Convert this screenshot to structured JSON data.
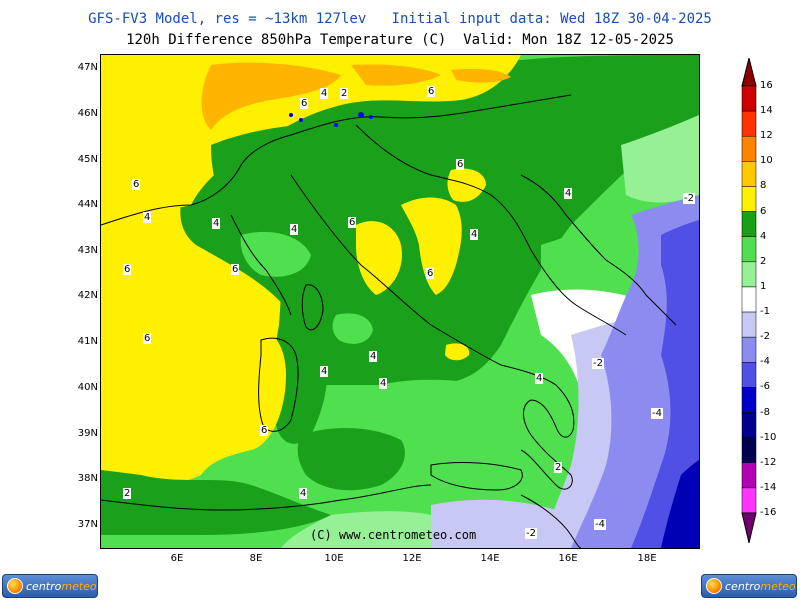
{
  "header": {
    "line1": "GFS-FV3 Model, res = ~13km 127lev   Initial input data: Wed 18Z 30-04-2025",
    "line2": "120h Difference 850hPa Temperature (C)  Valid: Mon 18Z 12-05-2025"
  },
  "map": {
    "copyright": "(C) www.centrometeo.com",
    "lat_labels": [
      "47N",
      "46N",
      "45N",
      "44N",
      "43N",
      "42N",
      "41N",
      "40N",
      "39N",
      "38N",
      "37N"
    ],
    "lon_labels": [
      "6E",
      "8E",
      "10E",
      "12E",
      "14E",
      "16E",
      "18E"
    ],
    "contour_labels": [
      "6",
      "6",
      "6",
      "6",
      "4",
      "6",
      "4",
      "4",
      "2",
      "-2",
      "4",
      "4",
      "6",
      "6",
      "6",
      "6",
      "4",
      "4",
      "4",
      "4",
      "-2",
      "-4",
      "6",
      "4",
      "2",
      "2",
      "4",
      "-2",
      "-4"
    ],
    "colors": {
      "sea_green": "#4fdf4f",
      "green": "#1aa01a",
      "yellow": "#fff000",
      "orange": "#ffb400",
      "white": "#ffffff",
      "lavender": "#c8c8f5",
      "periwinkle": "#8c8cf0",
      "blue": "#5050e6",
      "dark_blue": "#0000b4",
      "coast": "#000000",
      "lakes": "#0000ff"
    }
  },
  "legend": {
    "labels": [
      "16",
      "14",
      "12",
      "10",
      "8",
      "6",
      "4",
      "2",
      "1",
      "-1",
      "-2",
      "-4",
      "-6",
      "-8",
      "-10",
      "-12",
      "-14",
      "-16"
    ],
    "colors": [
      "#8b0000",
      "#cd0000",
      "#ff3200",
      "#ff8200",
      "#ffc800",
      "#fff000",
      "#19a019",
      "#4fdf4f",
      "#96f096",
      "#ffffff",
      "#c8c8f5",
      "#8c8cf0",
      "#5050e6",
      "#0000c8",
      "#000090",
      "#000050",
      "#b400b4",
      "#ff32ff",
      "#700070"
    ]
  },
  "logo": {
    "text_part1": "centro",
    "text_part2": "meteo"
  }
}
